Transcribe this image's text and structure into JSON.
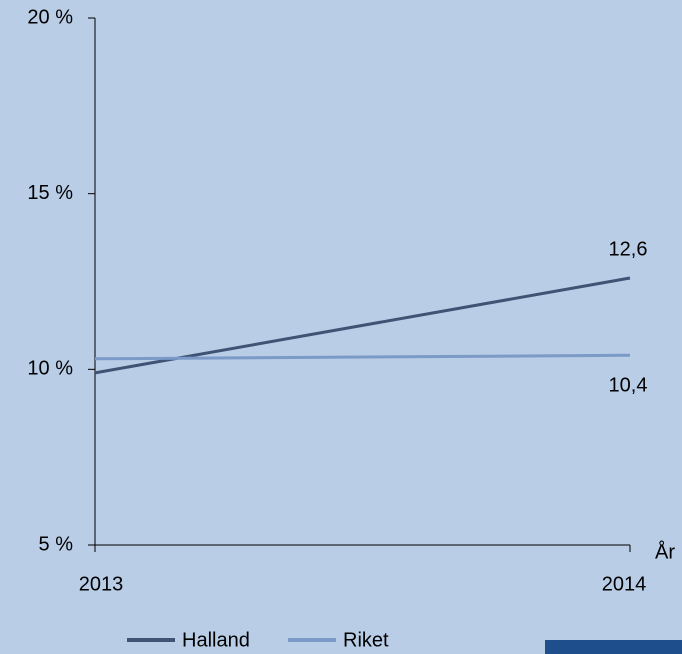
{
  "chart_data": {
    "type": "line",
    "categories": [
      "2013",
      "2014"
    ],
    "series": [
      {
        "name": "Halland",
        "color": "#3f5375",
        "values": [
          9.9,
          12.6
        ],
        "value_labels": [
          null,
          "12,6"
        ]
      },
      {
        "name": "Riket",
        "color": "#7c9ac8",
        "values": [
          10.3,
          10.4
        ],
        "value_labels": [
          null,
          "10,4"
        ]
      }
    ],
    "x_label": "År",
    "ylim": [
      5,
      20
    ],
    "yticks": [
      {
        "value": 5,
        "label": "5 %"
      },
      {
        "value": 10,
        "label": "10 %"
      },
      {
        "value": 15,
        "label": "15 %"
      },
      {
        "value": 20,
        "label": "20 %"
      }
    ],
    "legend": "bottom"
  }
}
